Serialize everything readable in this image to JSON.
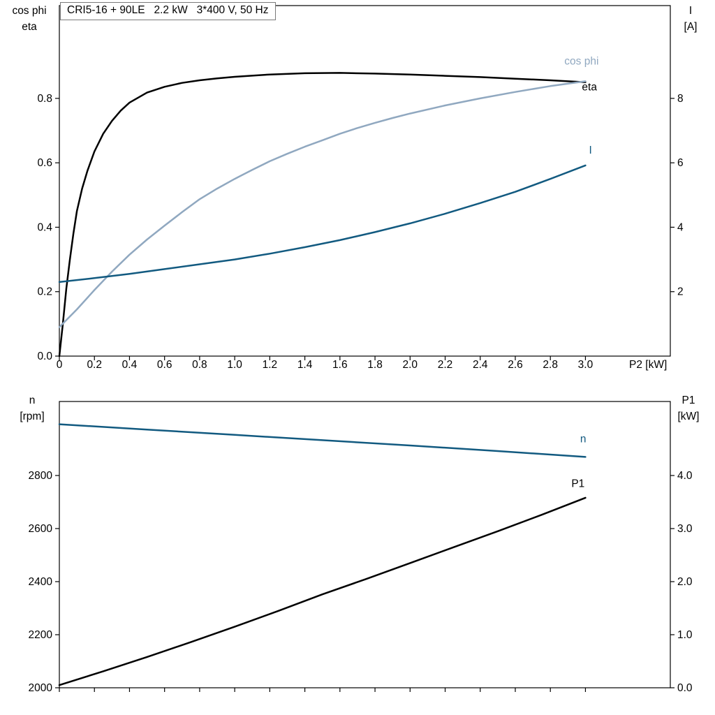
{
  "title_box": "CRI5-16 + 90LE   2.2 kW   3*400 V, 50 Hz",
  "colors": {
    "black_curve": "#000000",
    "light_blue_curve": "#90a8c0",
    "dark_blue_curve": "#125a80",
    "frame": "#000000",
    "title_border": "#7a7a7a"
  },
  "chart_data": [
    {
      "type": "line",
      "title": "CRI5-16 + 90LE 2.2 kW 3*400 V, 50 Hz",
      "grid": false,
      "legend": "inline-labels",
      "x_axis": {
        "label": "P2 [kW]",
        "min": 0,
        "max": 3.484,
        "ticks": [
          0,
          0.2,
          0.4,
          0.6,
          0.8,
          1.0,
          1.2,
          1.4,
          1.6,
          1.8,
          2.0,
          2.2,
          2.4,
          2.6,
          2.8,
          3.0
        ],
        "tick_labels": [
          "0",
          "0.2",
          "0.4",
          "0.6",
          "0.8",
          "1.0",
          "1.2",
          "1.4",
          "1.6",
          "1.8",
          "2.0",
          "2.2",
          "2.4",
          "2.6",
          "2.8",
          "3.0"
        ]
      },
      "y_left": {
        "label": [
          "cos phi",
          "eta"
        ],
        "min": 0,
        "max": 1.088,
        "ticks": [
          0,
          0.2,
          0.4,
          0.6,
          0.8
        ],
        "tick_labels": [
          "0.0",
          "0.2",
          "0.4",
          "0.6",
          "0.8"
        ]
      },
      "y_right": {
        "label": [
          "I",
          "[A]"
        ],
        "min": 0,
        "max": 10.88,
        "ticks": [
          2,
          4,
          6,
          8
        ],
        "tick_labels": [
          "2",
          "4",
          "6",
          "8"
        ]
      },
      "series": [
        {
          "name": "eta",
          "axis": "left",
          "color": "#000000",
          "label_at": [
            2.98,
            0.825
          ],
          "points": [
            [
              0,
              0
            ],
            [
              0.01,
              0.05
            ],
            [
              0.02,
              0.1
            ],
            [
              0.04,
              0.21
            ],
            [
              0.06,
              0.3
            ],
            [
              0.08,
              0.38
            ],
            [
              0.1,
              0.45
            ],
            [
              0.13,
              0.52
            ],
            [
              0.16,
              0.575
            ],
            [
              0.2,
              0.635
            ],
            [
              0.25,
              0.69
            ],
            [
              0.3,
              0.73
            ],
            [
              0.35,
              0.762
            ],
            [
              0.4,
              0.787
            ],
            [
              0.5,
              0.818
            ],
            [
              0.6,
              0.836
            ],
            [
              0.7,
              0.848
            ],
            [
              0.8,
              0.856
            ],
            [
              0.9,
              0.862
            ],
            [
              1.0,
              0.867
            ],
            [
              1.2,
              0.874
            ],
            [
              1.4,
              0.878
            ],
            [
              1.6,
              0.879
            ],
            [
              1.8,
              0.877
            ],
            [
              2.0,
              0.874
            ],
            [
              2.2,
              0.87
            ],
            [
              2.4,
              0.866
            ],
            [
              2.6,
              0.861
            ],
            [
              2.8,
              0.856
            ],
            [
              3.0,
              0.85
            ]
          ]
        },
        {
          "name": "cos phi",
          "axis": "left",
          "color": "#90a8c0",
          "label_at": [
            2.88,
            0.905
          ],
          "points": [
            [
              0,
              0.09
            ],
            [
              0.1,
              0.145
            ],
            [
              0.2,
              0.205
            ],
            [
              0.3,
              0.262
            ],
            [
              0.4,
              0.315
            ],
            [
              0.5,
              0.362
            ],
            [
              0.6,
              0.405
            ],
            [
              0.7,
              0.447
            ],
            [
              0.8,
              0.487
            ],
            [
              0.9,
              0.52
            ],
            [
              1.0,
              0.55
            ],
            [
              1.1,
              0.578
            ],
            [
              1.2,
              0.605
            ],
            [
              1.3,
              0.628
            ],
            [
              1.4,
              0.65
            ],
            [
              1.5,
              0.67
            ],
            [
              1.6,
              0.69
            ],
            [
              1.7,
              0.708
            ],
            [
              1.8,
              0.724
            ],
            [
              1.9,
              0.739
            ],
            [
              2.0,
              0.753
            ],
            [
              2.2,
              0.778
            ],
            [
              2.4,
              0.8
            ],
            [
              2.6,
              0.82
            ],
            [
              2.8,
              0.838
            ],
            [
              3.0,
              0.853
            ]
          ]
        },
        {
          "name": "I",
          "axis": "right",
          "color": "#125a80",
          "label_at": [
            3.02,
            6.28
          ],
          "points": [
            [
              0,
              2.3
            ],
            [
              0.2,
              2.42
            ],
            [
              0.4,
              2.55
            ],
            [
              0.6,
              2.7
            ],
            [
              0.8,
              2.85
            ],
            [
              1.0,
              3.0
            ],
            [
              1.2,
              3.18
            ],
            [
              1.4,
              3.38
            ],
            [
              1.6,
              3.6
            ],
            [
              1.8,
              3.85
            ],
            [
              2.0,
              4.12
            ],
            [
              2.2,
              4.42
            ],
            [
              2.4,
              4.75
            ],
            [
              2.6,
              5.1
            ],
            [
              2.8,
              5.5
            ],
            [
              3.0,
              5.92
            ]
          ]
        }
      ]
    },
    {
      "type": "line",
      "title": "",
      "grid": false,
      "legend": "inline-labels",
      "x_axis": {
        "label": "",
        "min": 0,
        "max": 3.484,
        "ticks": [
          0,
          0.2,
          0.4,
          0.6,
          0.8,
          1.0,
          1.2,
          1.4,
          1.6,
          1.8,
          2.0,
          2.2,
          2.4,
          2.6,
          2.8,
          3.0
        ],
        "tick_labels": []
      },
      "y_left": {
        "label": [
          "n",
          "[rpm]"
        ],
        "min": 2000,
        "max": 3078.9,
        "ticks": [
          2000,
          2200,
          2400,
          2600,
          2800
        ],
        "tick_labels": [
          "2000",
          "2200",
          "2400",
          "2600",
          "2800"
        ]
      },
      "y_right": {
        "label": [
          "P1",
          "[kW]"
        ],
        "min": 0,
        "max": 5.395,
        "ticks": [
          0,
          1,
          2,
          3,
          4
        ],
        "tick_labels": [
          "0.0",
          "1.0",
          "2.0",
          "3.0",
          "4.0"
        ]
      },
      "series": [
        {
          "name": "n",
          "axis": "left",
          "color": "#125a80",
          "label_at": [
            2.97,
            2925
          ],
          "points": [
            [
              0,
              2993
            ],
            [
              0.5,
              2973
            ],
            [
              1.0,
              2953
            ],
            [
              1.5,
              2933
            ],
            [
              2.0,
              2913
            ],
            [
              2.5,
              2892
            ],
            [
              3.0,
              2870
            ]
          ]
        },
        {
          "name": "P1",
          "axis": "right",
          "color": "#000000",
          "label_at": [
            2.92,
            3.78
          ],
          "points": [
            [
              0,
              0.05
            ],
            [
              0.25,
              0.31
            ],
            [
              0.5,
              0.58
            ],
            [
              0.75,
              0.86
            ],
            [
              1.0,
              1.15
            ],
            [
              1.25,
              1.45
            ],
            [
              1.5,
              1.76
            ],
            [
              1.75,
              2.05
            ],
            [
              2.0,
              2.35
            ],
            [
              2.25,
              2.65
            ],
            [
              2.5,
              2.95
            ],
            [
              2.75,
              3.26
            ],
            [
              3.0,
              3.58
            ]
          ]
        }
      ]
    }
  ]
}
